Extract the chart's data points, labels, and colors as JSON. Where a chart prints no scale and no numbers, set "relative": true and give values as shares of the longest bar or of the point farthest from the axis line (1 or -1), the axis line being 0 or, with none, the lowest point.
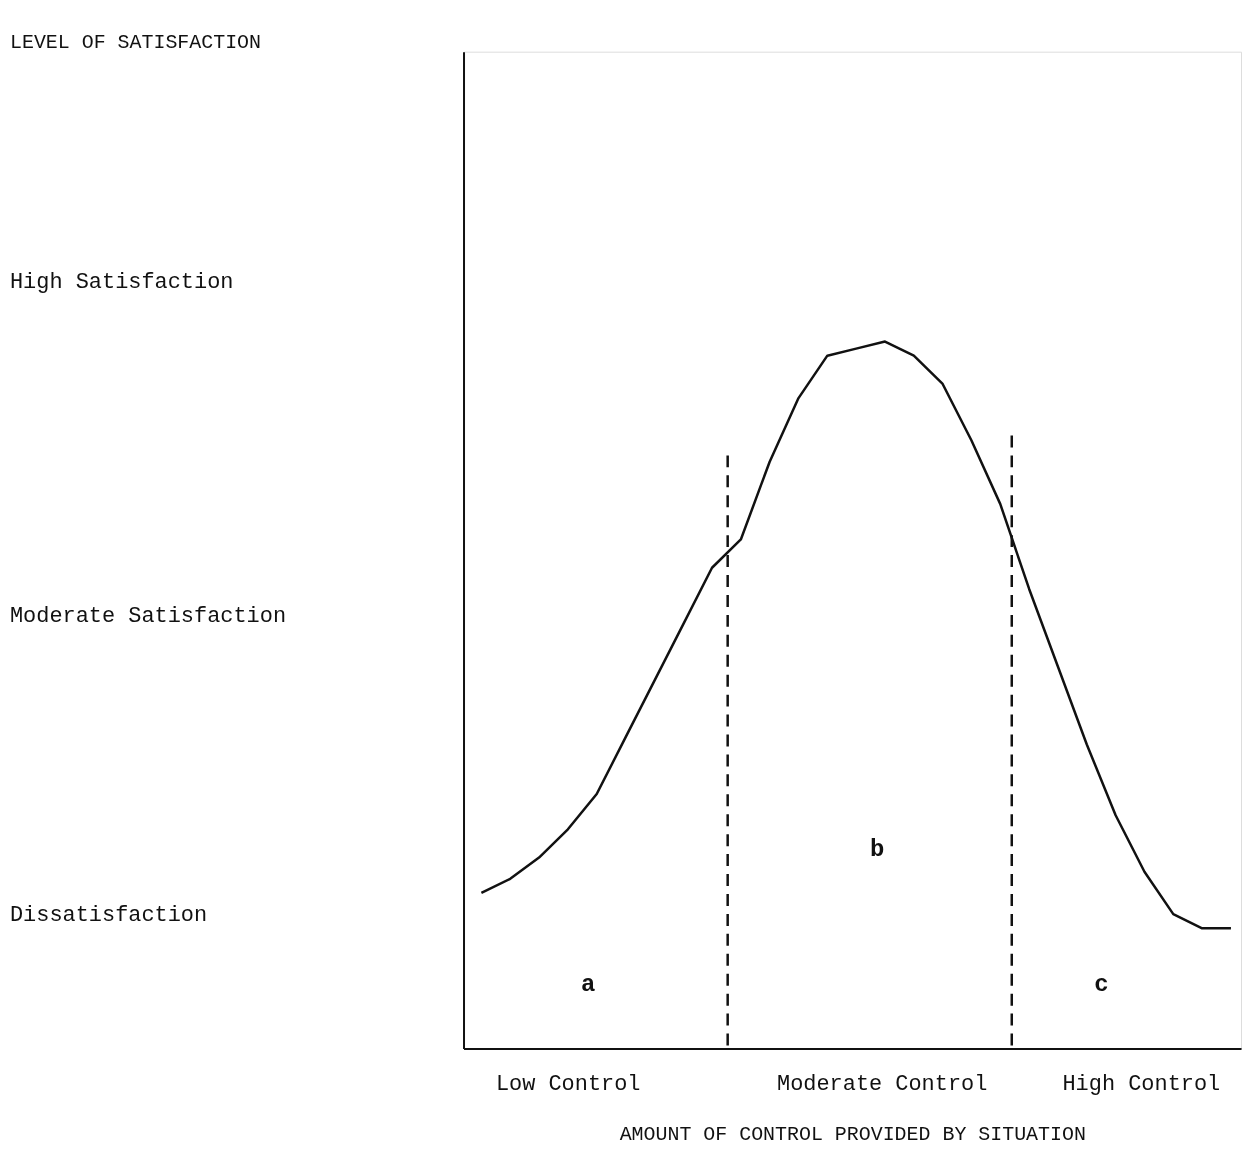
{
  "chart_data": {
    "type": "line",
    "relative": true,
    "xlabel": "AMOUNT OF CONTROL PROVIDED BY SITUATION",
    "categories": [
      null,
      null,
      null,
      null,
      null,
      null,
      null,
      null,
      null,
      null,
      null,
      null,
      null,
      null,
      null,
      null,
      null,
      null,
      null,
      null,
      null,
      null,
      null,
      null,
      null,
      null,
      null
    ],
    "grid": false,
    "line_style": "solid",
    "series": [
      {
        "color": "#111111",
        "values": [
          0.22,
          0.24,
          0.27,
          0.31,
          0.36,
          0.44,
          0.52,
          0.6,
          0.68,
          0.72,
          0.83,
          0.92,
          0.98,
          0.99,
          1,
          0.98,
          0.94,
          0.86,
          0.77,
          0.65,
          0.54,
          0.43,
          0.33,
          0.25,
          0.19,
          0.17,
          0.17
        ]
      }
    ],
    "annotations": [
      "LEVEL OF SATISFACTION",
      "High Satisfaction",
      "Moderate Satisfaction",
      "Dissatisfaction",
      "Low Control",
      "Moderate Control",
      "High Control",
      "a",
      "b",
      "c"
    ]
  }
}
